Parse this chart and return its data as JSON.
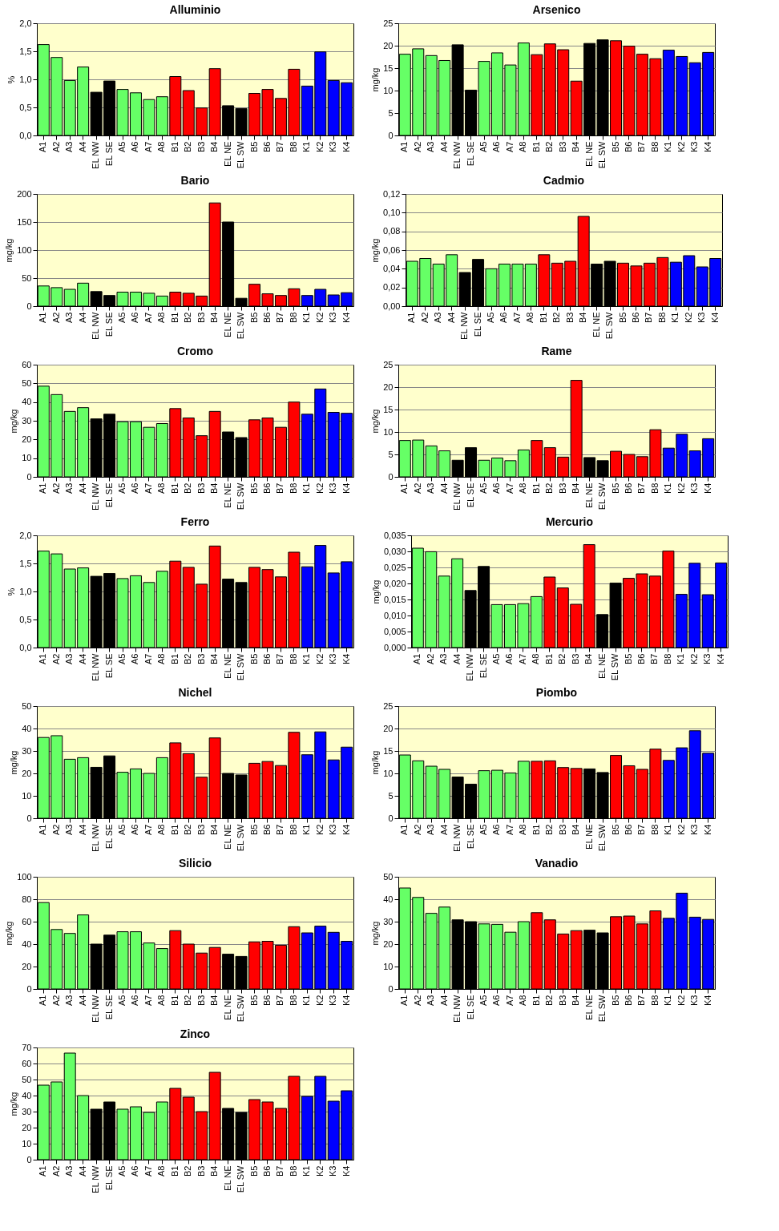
{
  "chart_data": [
    {
      "type": "bar",
      "title": "Alluminio",
      "ylabel": "%",
      "categories": [
        "A1",
        "A2",
        "A3",
        "A4",
        "EL NW",
        "EL SE",
        "A5",
        "A6",
        "A7",
        "A8",
        "B1",
        "B2",
        "B3",
        "B4",
        "EL NE",
        "EL SW",
        "B5",
        "B6",
        "B7",
        "B8",
        "K1",
        "K2",
        "K3",
        "K4"
      ],
      "colors": [
        "#66ff66",
        "#66ff66",
        "#66ff66",
        "#66ff66",
        "#000000",
        "#000000",
        "#66ff66",
        "#66ff66",
        "#66ff66",
        "#66ff66",
        "#ff0000",
        "#ff0000",
        "#ff0000",
        "#ff0000",
        "#000000",
        "#000000",
        "#ff0000",
        "#ff0000",
        "#ff0000",
        "#ff0000",
        "#0000ff",
        "#0000ff",
        "#0000ff",
        "#0000ff"
      ],
      "values": [
        1.62,
        1.39,
        0.98,
        1.22,
        0.77,
        0.97,
        0.82,
        0.76,
        0.64,
        0.69,
        1.05,
        0.8,
        0.49,
        1.19,
        0.53,
        0.48,
        0.75,
        0.82,
        0.66,
        1.18,
        0.88,
        1.49,
        0.98,
        0.94
      ],
      "ylim": [
        0,
        2
      ],
      "yticks": [
        {
          "value": 0,
          "label": "0,0"
        },
        {
          "value": 0.5,
          "label": "0,5"
        },
        {
          "value": 1,
          "label": "1,0"
        },
        {
          "value": 1.5,
          "label": "1,5"
        },
        {
          "value": 2,
          "label": "2,0"
        }
      ],
      "grid": "y"
    },
    {
      "type": "bar",
      "title": "Arsenico",
      "ylabel": "mg/kg",
      "categories": [
        "A1",
        "A2",
        "A3",
        "A4",
        "EL NW",
        "EL SE",
        "A5",
        "A6",
        "A7",
        "A8",
        "B1",
        "B2",
        "B3",
        "B4",
        "EL NE",
        "EL SW",
        "B5",
        "B6",
        "B7",
        "B8",
        "K1",
        "K2",
        "K3",
        "K4"
      ],
      "colors": [
        "#66ff66",
        "#66ff66",
        "#66ff66",
        "#66ff66",
        "#000000",
        "#000000",
        "#66ff66",
        "#66ff66",
        "#66ff66",
        "#66ff66",
        "#ff0000",
        "#ff0000",
        "#ff0000",
        "#ff0000",
        "#000000",
        "#000000",
        "#ff0000",
        "#ff0000",
        "#ff0000",
        "#ff0000",
        "#0000ff",
        "#0000ff",
        "#0000ff",
        "#0000ff"
      ],
      "values": [
        18.1,
        19.3,
        17.8,
        16.7,
        20.2,
        10.1,
        16.5,
        18.4,
        15.7,
        20.6,
        18.0,
        20.4,
        19.1,
        12.1,
        20.5,
        21.3,
        21.1,
        19.9,
        18.1,
        17.1,
        19.0,
        17.6,
        16.2,
        18.5
      ],
      "ylim": [
        0,
        25
      ],
      "yticks": [
        0,
        5,
        10,
        15,
        20,
        25
      ],
      "grid": "y"
    },
    {
      "type": "bar",
      "title": "Bario",
      "ylabel": "mg/kg",
      "categories": [
        "A1",
        "A2",
        "A3",
        "A4",
        "EL NW",
        "EL SE",
        "A5",
        "A6",
        "A7",
        "A8",
        "B1",
        "B2",
        "B3",
        "B4",
        "EL NE",
        "EL SW",
        "B5",
        "B6",
        "B7",
        "B8",
        "K1",
        "K2",
        "K3",
        "K4"
      ],
      "colors": [
        "#66ff66",
        "#66ff66",
        "#66ff66",
        "#66ff66",
        "#000000",
        "#000000",
        "#66ff66",
        "#66ff66",
        "#66ff66",
        "#66ff66",
        "#ff0000",
        "#ff0000",
        "#ff0000",
        "#ff0000",
        "#000000",
        "#000000",
        "#ff0000",
        "#ff0000",
        "#ff0000",
        "#ff0000",
        "#0000ff",
        "#0000ff",
        "#0000ff",
        "#0000ff"
      ],
      "values": [
        36,
        33,
        30,
        41,
        26,
        19,
        25,
        25,
        23,
        18,
        25,
        23,
        18,
        184,
        150,
        14,
        39,
        22,
        19,
        31,
        19,
        30,
        20,
        24
      ],
      "ylim": [
        0,
        200
      ],
      "yticks": [
        0,
        50,
        100,
        150,
        200
      ],
      "grid": "y"
    },
    {
      "type": "bar",
      "title": "Cadmio",
      "ylabel": "mg/kg",
      "categories": [
        "A1",
        "A2",
        "A3",
        "A4",
        "EL NW",
        "EL SE",
        "A5",
        "A6",
        "A7",
        "A8",
        "B1",
        "B2",
        "B3",
        "B4",
        "EL NE",
        "EL SW",
        "B5",
        "B6",
        "B7",
        "B8",
        "K1",
        "K2",
        "K3",
        "K4"
      ],
      "colors": [
        "#66ff66",
        "#66ff66",
        "#66ff66",
        "#66ff66",
        "#000000",
        "#000000",
        "#66ff66",
        "#66ff66",
        "#66ff66",
        "#66ff66",
        "#ff0000",
        "#ff0000",
        "#ff0000",
        "#ff0000",
        "#000000",
        "#000000",
        "#ff0000",
        "#ff0000",
        "#ff0000",
        "#ff0000",
        "#0000ff",
        "#0000ff",
        "#0000ff",
        "#0000ff"
      ],
      "values": [
        0.048,
        0.051,
        0.045,
        0.055,
        0.036,
        0.05,
        0.04,
        0.045,
        0.045,
        0.045,
        0.055,
        0.046,
        0.048,
        0.096,
        0.045,
        0.048,
        0.046,
        0.043,
        0.046,
        0.052,
        0.047,
        0.054,
        0.042,
        0.051
      ],
      "ylim": [
        0,
        0.12
      ],
      "yticks": [
        {
          "value": 0,
          "label": "0,00"
        },
        {
          "value": 0.02,
          "label": "0,02"
        },
        {
          "value": 0.04,
          "label": "0,04"
        },
        {
          "value": 0.06,
          "label": "0,06"
        },
        {
          "value": 0.08,
          "label": "0,08"
        },
        {
          "value": 0.1,
          "label": "0,10"
        },
        {
          "value": 0.12,
          "label": "0,12"
        }
      ],
      "grid": "y"
    },
    {
      "type": "bar",
      "title": "Cromo",
      "ylabel": "mg/kg",
      "categories": [
        "A1",
        "A2",
        "A3",
        "A4",
        "EL NW",
        "EL SE",
        "A5",
        "A6",
        "A7",
        "A8",
        "B1",
        "B2",
        "B3",
        "B4",
        "EL NE",
        "EL SW",
        "B5",
        "B6",
        "B7",
        "B8",
        "K1",
        "K2",
        "K3",
        "K4"
      ],
      "colors": [
        "#66ff66",
        "#66ff66",
        "#66ff66",
        "#66ff66",
        "#000000",
        "#000000",
        "#66ff66",
        "#66ff66",
        "#66ff66",
        "#66ff66",
        "#ff0000",
        "#ff0000",
        "#ff0000",
        "#ff0000",
        "#000000",
        "#000000",
        "#ff0000",
        "#ff0000",
        "#ff0000",
        "#ff0000",
        "#0000ff",
        "#0000ff",
        "#0000ff",
        "#0000ff"
      ],
      "values": [
        48.5,
        44,
        35,
        37,
        31,
        33.5,
        29.5,
        29.5,
        26.5,
        28.5,
        36.5,
        31.5,
        22,
        35,
        24,
        21,
        30.5,
        31.5,
        26.5,
        40,
        33.5,
        47,
        34.5,
        34
      ],
      "ylim": [
        0,
        60
      ],
      "yticks": [
        0,
        10,
        20,
        30,
        40,
        50,
        60
      ],
      "grid": "y"
    },
    {
      "type": "bar",
      "title": "Rame",
      "ylabel": "mg/kg",
      "categories": [
        "A1",
        "A2",
        "A3",
        "A4",
        "EL NW",
        "EL SE",
        "A5",
        "A6",
        "A7",
        "A8",
        "B1",
        "B2",
        "B3",
        "B4",
        "EL NE",
        "EL SW",
        "B5",
        "B6",
        "B7",
        "B8",
        "K1",
        "K2",
        "K3",
        "K4"
      ],
      "colors": [
        "#66ff66",
        "#66ff66",
        "#66ff66",
        "#66ff66",
        "#000000",
        "#000000",
        "#66ff66",
        "#66ff66",
        "#66ff66",
        "#66ff66",
        "#ff0000",
        "#ff0000",
        "#ff0000",
        "#ff0000",
        "#000000",
        "#000000",
        "#ff0000",
        "#ff0000",
        "#ff0000",
        "#ff0000",
        "#0000ff",
        "#0000ff",
        "#0000ff",
        "#0000ff"
      ],
      "values": [
        8.1,
        8.2,
        6.9,
        5.8,
        3.7,
        6.5,
        3.7,
        4.2,
        3.6,
        6.0,
        8.1,
        6.5,
        4.4,
        21.5,
        4.3,
        3.6,
        5.7,
        5.0,
        4.5,
        10.5,
        6.4,
        9.5,
        5.8,
        8.5
      ],
      "ylim": [
        0,
        25
      ],
      "yticks": [
        0,
        5,
        10,
        15,
        20,
        25
      ],
      "grid": "y"
    },
    {
      "type": "bar",
      "title": "Ferro",
      "ylabel": "%",
      "categories": [
        "A1",
        "A2",
        "A3",
        "A4",
        "EL NW",
        "EL SE",
        "A5",
        "A6",
        "A7",
        "A8",
        "B1",
        "B2",
        "B3",
        "B4",
        "EL NE",
        "EL SW",
        "B5",
        "B6",
        "B7",
        "B8",
        "K1",
        "K2",
        "K3",
        "K4"
      ],
      "colors": [
        "#66ff66",
        "#66ff66",
        "#66ff66",
        "#66ff66",
        "#000000",
        "#000000",
        "#66ff66",
        "#66ff66",
        "#66ff66",
        "#66ff66",
        "#ff0000",
        "#ff0000",
        "#ff0000",
        "#ff0000",
        "#000000",
        "#000000",
        "#ff0000",
        "#ff0000",
        "#ff0000",
        "#ff0000",
        "#0000ff",
        "#0000ff",
        "#0000ff",
        "#0000ff"
      ],
      "values": [
        1.72,
        1.67,
        1.4,
        1.42,
        1.27,
        1.32,
        1.23,
        1.28,
        1.16,
        1.36,
        1.54,
        1.43,
        1.13,
        1.81,
        1.22,
        1.16,
        1.43,
        1.39,
        1.26,
        1.7,
        1.44,
        1.82,
        1.33,
        1.53
      ],
      "ylim": [
        0,
        2
      ],
      "yticks": [
        {
          "value": 0,
          "label": "0,0"
        },
        {
          "value": 0.5,
          "label": "0,5"
        },
        {
          "value": 1,
          "label": "1,0"
        },
        {
          "value": 1.5,
          "label": "1,5"
        },
        {
          "value": 2,
          "label": "2,0"
        }
      ],
      "grid": "y"
    },
    {
      "type": "bar",
      "title": "Mercurio",
      "ylabel": "mg/kg",
      "categories": [
        "A1",
        "A2",
        "A3",
        "A4",
        "EL NW",
        "EL SE",
        "A5",
        "A6",
        "A7",
        "A8",
        "B1",
        "B2",
        "B3",
        "B4",
        "EL NE",
        "EL SW",
        "B5",
        "B6",
        "B7",
        "B8",
        "K1",
        "K2",
        "K3",
        "K4"
      ],
      "colors": [
        "#66ff66",
        "#66ff66",
        "#66ff66",
        "#66ff66",
        "#000000",
        "#000000",
        "#66ff66",
        "#66ff66",
        "#66ff66",
        "#66ff66",
        "#ff0000",
        "#ff0000",
        "#ff0000",
        "#ff0000",
        "#000000",
        "#000000",
        "#ff0000",
        "#ff0000",
        "#ff0000",
        "#ff0000",
        "#0000ff",
        "#0000ff",
        "#0000ff",
        "#0000ff"
      ],
      "values": [
        0.031,
        0.0299,
        0.0223,
        0.0277,
        0.0178,
        0.0253,
        0.0134,
        0.0134,
        0.0137,
        0.0159,
        0.022,
        0.0186,
        0.0135,
        0.0321,
        0.0103,
        0.0201,
        0.0216,
        0.023,
        0.0223,
        0.0301,
        0.0166,
        0.0263,
        0.0165,
        0.0264
      ],
      "ylim": [
        0,
        0.035
      ],
      "yticks": [
        {
          "value": 0,
          "label": "0,000"
        },
        {
          "value": 0.005,
          "label": "0,005"
        },
        {
          "value": 0.01,
          "label": "0,010"
        },
        {
          "value": 0.015,
          "label": "0,015"
        },
        {
          "value": 0.02,
          "label": "0,020"
        },
        {
          "value": 0.025,
          "label": "0,025"
        },
        {
          "value": 0.03,
          "label": "0,030"
        },
        {
          "value": 0.035,
          "label": "0,035"
        }
      ],
      "grid": "y"
    },
    {
      "type": "bar",
      "title": "Nichel",
      "ylabel": "mg/kg",
      "categories": [
        "A1",
        "A2",
        "A3",
        "A4",
        "EL NW",
        "EL SE",
        "A5",
        "A6",
        "A7",
        "A8",
        "B1",
        "B2",
        "B3",
        "B4",
        "EL NE",
        "EL SW",
        "B5",
        "B6",
        "B7",
        "B8",
        "K1",
        "K2",
        "K3",
        "K4"
      ],
      "colors": [
        "#66ff66",
        "#66ff66",
        "#66ff66",
        "#66ff66",
        "#000000",
        "#000000",
        "#66ff66",
        "#66ff66",
        "#66ff66",
        "#66ff66",
        "#ff0000",
        "#ff0000",
        "#ff0000",
        "#ff0000",
        "#000000",
        "#000000",
        "#ff0000",
        "#ff0000",
        "#ff0000",
        "#ff0000",
        "#0000ff",
        "#0000ff",
        "#0000ff",
        "#0000ff"
      ],
      "values": [
        36,
        36.8,
        26.3,
        27,
        22.7,
        27.8,
        20.5,
        22,
        20,
        27,
        33.6,
        28.8,
        18.3,
        35.8,
        20,
        19.3,
        24.5,
        25.3,
        23.5,
        38.3,
        28.3,
        38.5,
        26,
        31.7
      ],
      "ylim": [
        0,
        50
      ],
      "yticks": [
        0,
        10,
        20,
        30,
        40,
        50
      ],
      "grid": "y"
    },
    {
      "type": "bar",
      "title": "Piombo",
      "ylabel": "mg/kg",
      "categories": [
        "A1",
        "A2",
        "A3",
        "A4",
        "EL NW",
        "EL SE",
        "A5",
        "A6",
        "A7",
        "A8",
        "B1",
        "B2",
        "B3",
        "B4",
        "EL NE",
        "EL SW",
        "B5",
        "B6",
        "B7",
        "B8",
        "K1",
        "K2",
        "K3",
        "K4"
      ],
      "colors": [
        "#66ff66",
        "#66ff66",
        "#66ff66",
        "#66ff66",
        "#000000",
        "#000000",
        "#66ff66",
        "#66ff66",
        "#66ff66",
        "#66ff66",
        "#ff0000",
        "#ff0000",
        "#ff0000",
        "#ff0000",
        "#000000",
        "#000000",
        "#ff0000",
        "#ff0000",
        "#ff0000",
        "#ff0000",
        "#0000ff",
        "#0000ff",
        "#0000ff",
        "#0000ff"
      ],
      "values": [
        14.1,
        12.8,
        11.6,
        10.9,
        9.2,
        7.6,
        10.6,
        10.7,
        10.1,
        12.7,
        12.7,
        12.8,
        11.3,
        11.1,
        11.0,
        10.2,
        14.0,
        11.7,
        10.9,
        15.4,
        12.9,
        15.7,
        19.5,
        14.5
      ],
      "ylim": [
        0,
        25
      ],
      "yticks": [
        0,
        5,
        10,
        15,
        20,
        25
      ],
      "grid": "y"
    },
    {
      "type": "bar",
      "title": "Silicio",
      "ylabel": "mg/kg",
      "categories": [
        "A1",
        "A2",
        "A3",
        "A4",
        "EL NW",
        "EL SE",
        "A5",
        "A6",
        "A7",
        "A8",
        "B1",
        "B2",
        "B3",
        "B4",
        "EL NE",
        "EL SW",
        "B5",
        "B6",
        "B7",
        "B8",
        "K1",
        "K2",
        "K3",
        "K4"
      ],
      "colors": [
        "#66ff66",
        "#66ff66",
        "#66ff66",
        "#66ff66",
        "#000000",
        "#000000",
        "#66ff66",
        "#66ff66",
        "#66ff66",
        "#66ff66",
        "#ff0000",
        "#ff0000",
        "#ff0000",
        "#ff0000",
        "#000000",
        "#000000",
        "#ff0000",
        "#ff0000",
        "#ff0000",
        "#ff0000",
        "#0000ff",
        "#0000ff",
        "#0000ff",
        "#0000ff"
      ],
      "values": [
        77,
        53,
        49.5,
        66,
        40,
        48,
        51,
        51,
        41,
        36,
        52,
        40,
        32,
        37,
        31,
        29,
        42,
        42.5,
        39,
        55.5,
        50,
        56,
        50.5,
        42.5
      ],
      "ylim": [
        0,
        100
      ],
      "yticks": [
        0,
        20,
        40,
        60,
        80,
        100
      ],
      "grid": "y"
    },
    {
      "type": "bar",
      "title": "Vanadio",
      "ylabel": "mg/kg",
      "categories": [
        "A1",
        "A2",
        "A3",
        "A4",
        "EL NW",
        "EL SE",
        "A5",
        "A6",
        "A7",
        "A8",
        "B1",
        "B2",
        "B3",
        "B4",
        "EL NE",
        "EL SW",
        "B5",
        "B6",
        "B7",
        "B8",
        "K1",
        "K2",
        "K3",
        "K4"
      ],
      "colors": [
        "#66ff66",
        "#66ff66",
        "#66ff66",
        "#66ff66",
        "#000000",
        "#000000",
        "#66ff66",
        "#66ff66",
        "#66ff66",
        "#66ff66",
        "#ff0000",
        "#ff0000",
        "#ff0000",
        "#ff0000",
        "#000000",
        "#000000",
        "#ff0000",
        "#ff0000",
        "#ff0000",
        "#ff0000",
        "#0000ff",
        "#0000ff",
        "#0000ff",
        "#0000ff"
      ],
      "values": [
        45,
        40.8,
        33.7,
        36.5,
        30.8,
        30,
        29,
        28.8,
        25.3,
        30,
        34,
        30.8,
        24.5,
        26,
        26.2,
        25,
        32.2,
        32.5,
        29,
        34.8,
        31.5,
        42.7,
        32,
        31
      ],
      "ylim": [
        0,
        50
      ],
      "yticks": [
        0,
        10,
        20,
        30,
        40,
        50
      ],
      "grid": "y"
    },
    {
      "type": "bar",
      "title": "Zinco",
      "ylabel": "mg/kg",
      "categories": [
        "A1",
        "A2",
        "A3",
        "A4",
        "EL NW",
        "EL SE",
        "A5",
        "A6",
        "A7",
        "A8",
        "B1",
        "B2",
        "B3",
        "B4",
        "EL NE",
        "EL SW",
        "B5",
        "B6",
        "B7",
        "B8",
        "K1",
        "K2",
        "K3",
        "K4"
      ],
      "colors": [
        "#66ff66",
        "#66ff66",
        "#66ff66",
        "#66ff66",
        "#000000",
        "#000000",
        "#66ff66",
        "#66ff66",
        "#66ff66",
        "#66ff66",
        "#ff0000",
        "#ff0000",
        "#ff0000",
        "#ff0000",
        "#000000",
        "#000000",
        "#ff0000",
        "#ff0000",
        "#ff0000",
        "#ff0000",
        "#0000ff",
        "#0000ff",
        "#0000ff",
        "#0000ff"
      ],
      "values": [
        46.5,
        48.5,
        66.5,
        40,
        31.5,
        36,
        31.5,
        33,
        29.5,
        36,
        44.5,
        39,
        30,
        54.5,
        32,
        29.5,
        37.5,
        36,
        32,
        52,
        39.5,
        52,
        36.5,
        43
      ],
      "ylim": [
        0,
        70
      ],
      "yticks": [
        0,
        10,
        20,
        30,
        40,
        50,
        60,
        70
      ],
      "grid": "y"
    }
  ]
}
